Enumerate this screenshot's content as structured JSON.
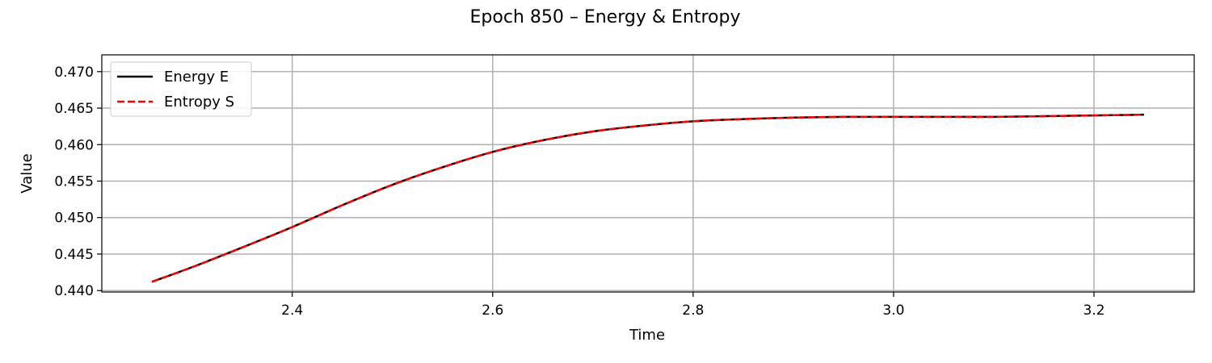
{
  "chart_data": {
    "type": "line",
    "title": "Epoch 850 – Energy & Entropy",
    "xlabel": "Time",
    "ylabel": "Value",
    "xlim": [
      2.21,
      3.3
    ],
    "ylim": [
      0.4398,
      0.4723
    ],
    "xticks": [
      2.4,
      2.6,
      2.8,
      3.0,
      3.2
    ],
    "xtick_labels": [
      "2.4",
      "2.6",
      "2.8",
      "3.0",
      "3.2"
    ],
    "yticks": [
      0.44,
      0.445,
      0.45,
      0.455,
      0.46,
      0.465,
      0.47
    ],
    "ytick_labels": [
      "0.440",
      "0.445",
      "0.450",
      "0.455",
      "0.460",
      "0.465",
      "0.470"
    ],
    "grid": true,
    "legend_position": "upper-left",
    "series": [
      {
        "name": "Energy E",
        "color": "#000000",
        "style": "solid",
        "x": [
          2.26,
          2.3,
          2.35,
          2.4,
          2.45,
          2.5,
          2.55,
          2.6,
          2.65,
          2.7,
          2.75,
          2.8,
          2.85,
          2.9,
          2.95,
          3.0,
          3.05,
          3.1,
          3.15,
          3.2,
          3.25
        ],
        "values": [
          0.4412,
          0.4432,
          0.4459,
          0.4487,
          0.4517,
          0.4545,
          0.4569,
          0.459,
          0.4606,
          0.4618,
          0.4626,
          0.4632,
          0.4635,
          0.4637,
          0.4638,
          0.4638,
          0.4638,
          0.4638,
          0.4639,
          0.464,
          0.4641
        ]
      },
      {
        "name": "Entropy S",
        "color": "#ff0000",
        "style": "dashed",
        "x": [
          2.26,
          2.3,
          2.35,
          2.4,
          2.45,
          2.5,
          2.55,
          2.6,
          2.65,
          2.7,
          2.75,
          2.8,
          2.85,
          2.9,
          2.95,
          3.0,
          3.05,
          3.1,
          3.15,
          3.2,
          3.25
        ],
        "values": [
          0.4412,
          0.4432,
          0.4459,
          0.4487,
          0.4517,
          0.4545,
          0.4569,
          0.459,
          0.4606,
          0.4618,
          0.4626,
          0.4632,
          0.4635,
          0.4637,
          0.4638,
          0.4638,
          0.4638,
          0.4638,
          0.4639,
          0.464,
          0.4641
        ]
      }
    ]
  }
}
